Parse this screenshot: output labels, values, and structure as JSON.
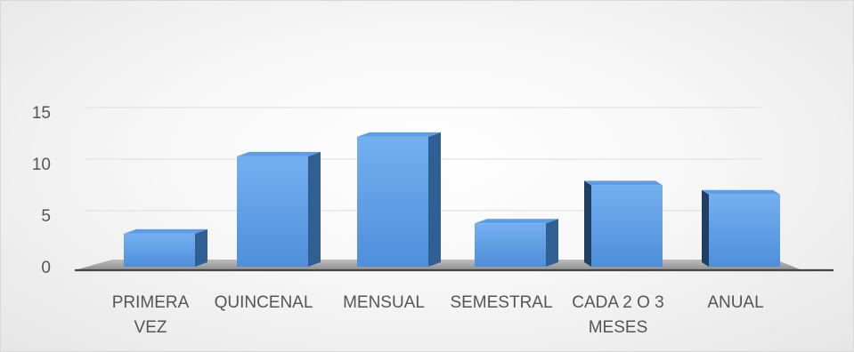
{
  "chart_data": {
    "type": "bar",
    "style": "3d-column",
    "title": "",
    "xlabel": "",
    "ylabel": "",
    "categories": [
      [
        "PRIMERA",
        "VEZ"
      ],
      [
        "QUINCENAL"
      ],
      [
        "MENSUAL"
      ],
      [
        "SEMESTRAL"
      ],
      [
        "CADA 2 O 3",
        "MESES"
      ],
      [
        "ANUAL"
      ]
    ],
    "values": [
      3.2,
      10.7,
      12.6,
      4.2,
      7.9,
      7.0
    ],
    "ylim": [
      0,
      15
    ],
    "yticks": [
      "0",
      "5",
      "10",
      "15"
    ],
    "grid": true,
    "legend": "none",
    "colors": {
      "bar_front_top": "#74aff0",
      "bar_front_bottom": "#4f8fda",
      "bar_top": "#5c9de6",
      "bar_side": "#2f5f93",
      "bar_side_dark": "#1f3f63",
      "floor": "#9e9e9e",
      "baseline": "#444444",
      "gridline": "#e3e3e3",
      "text": "#555555"
    }
  }
}
